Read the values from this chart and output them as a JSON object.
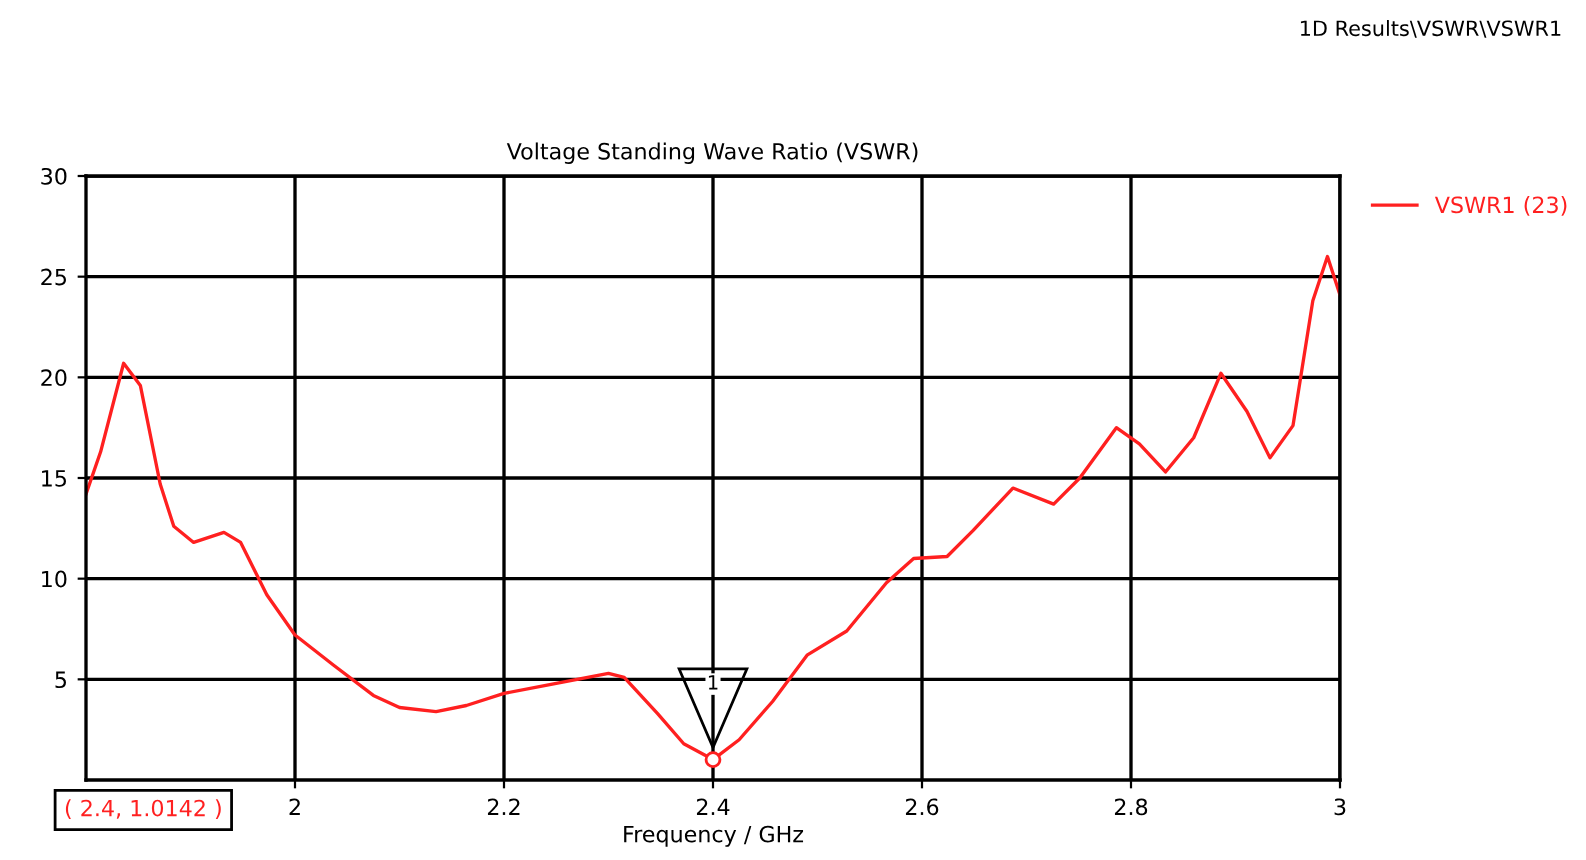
{
  "chart_data": {
    "type": "line",
    "title": "Voltage Standing Wave Ratio (VSWR)",
    "xlabel": "Frequency / GHz",
    "annotations": [
      "1D Results\\VSWR\\VSWR1",
      "1",
      "( 2.4, 1.0142 )"
    ],
    "series": [
      {
        "name": "VSWR1 (23)",
        "color": "#ff2020",
        "x": [
          1.8,
          1.814,
          1.836,
          1.852,
          1.871,
          1.884,
          1.903,
          1.932,
          1.948,
          1.973,
          2.0,
          2.037,
          2.075,
          2.1,
          2.135,
          2.164,
          2.2,
          2.24,
          2.27,
          2.3,
          2.315,
          2.347,
          2.372,
          2.4,
          2.425,
          2.457,
          2.49,
          2.528,
          2.566,
          2.592,
          2.624,
          2.649,
          2.687,
          2.726,
          2.751,
          2.786,
          2.808,
          2.833,
          2.86,
          2.886,
          2.911,
          2.933,
          2.955,
          2.974,
          2.988,
          3.0
        ],
        "values": [
          14.2,
          16.3,
          20.7,
          19.6,
          14.7,
          12.6,
          11.8,
          12.3,
          11.8,
          9.2,
          7.2,
          5.7,
          4.2,
          3.6,
          3.4,
          3.7,
          4.3,
          4.7,
          5.0,
          5.3,
          5.1,
          3.3,
          1.8,
          1.0142,
          2.0,
          3.9,
          6.2,
          7.4,
          9.8,
          11.0,
          11.1,
          12.4,
          14.5,
          13.7,
          15.0,
          17.5,
          16.7,
          15.3,
          17.0,
          20.2,
          18.3,
          16.0,
          17.6,
          23.8,
          26.0,
          24.1
        ]
      }
    ],
    "xlim": [
      1.8,
      3
    ],
    "xticks": [
      2,
      2.2,
      2.4,
      2.6,
      2.8,
      3
    ],
    "ylim": [
      0,
      30
    ],
    "yticks": [
      5,
      10,
      15,
      20,
      25,
      30
    ],
    "grid": true,
    "legend": "top right",
    "line_style": "solid",
    "marker": "none"
  }
}
